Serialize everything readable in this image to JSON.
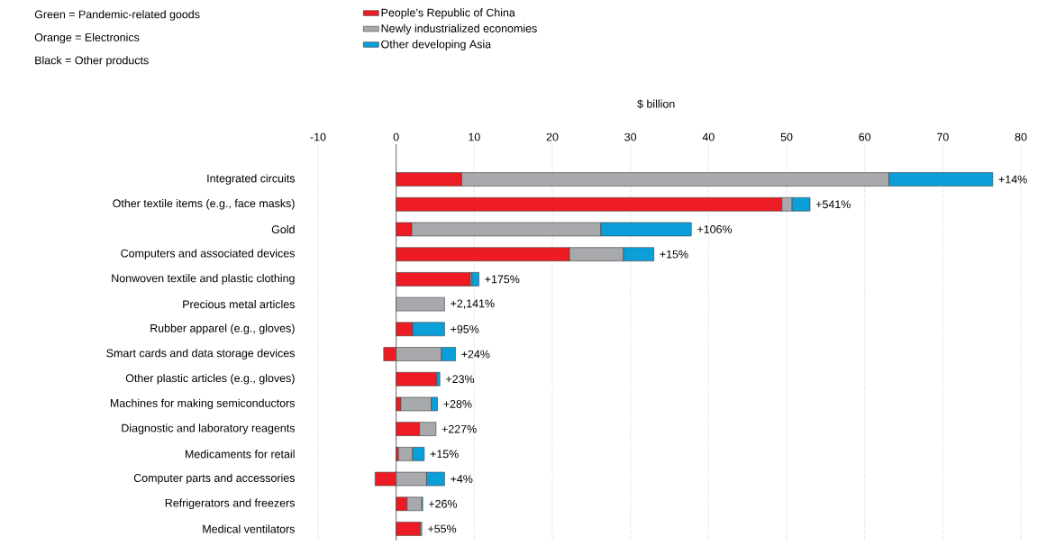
{
  "chart_data": {
    "type": "bar",
    "orientation": "horizontal",
    "stacked": true,
    "xlabel": "$ billion",
    "categories": [
      "Integrated circuits",
      "Other textile items (e.g., face masks)",
      "Gold",
      "Computers and associated devices",
      "Nonwoven textile and plastic clothing",
      "Precious metal articles",
      "Rubber apparel (e.g., gloves)",
      "Smart cards and data storage devices",
      "Other plastic articles (e.g., gloves)",
      "Machines for making semiconductors",
      "Diagnostic and laboratory reagents",
      "Medicaments for retail",
      "Computer parts and accessories",
      "Refrigerators and freezers",
      "Medical ventilators"
    ],
    "series": [
      {
        "name": "People’s Republic of China",
        "color": "#ed1c24",
        "values": [
          8.4,
          49.4,
          2.0,
          22.2,
          9.5,
          0,
          2.1,
          -1.6,
          5.2,
          0.6,
          3.0,
          0.3,
          -2.7,
          1.4,
          3.1
        ]
      },
      {
        "name": "Newly industrialized economies",
        "color": "#a7a9ac",
        "values": [
          54.7,
          1.3,
          24.2,
          6.9,
          0.2,
          6.2,
          0,
          5.8,
          0,
          3.9,
          2.1,
          1.8,
          3.9,
          1.9,
          0.2
        ]
      },
      {
        "name": "Other developing Asia",
        "color": "#0a9fd8",
        "values": [
          13.3,
          2.3,
          11.6,
          3.9,
          0.9,
          0,
          4.1,
          1.8,
          0.4,
          0.8,
          0,
          1.5,
          2.3,
          0.1,
          0
        ]
      }
    ],
    "xlim": [
      -10,
      80
    ],
    "xticks": [
      -10,
      0,
      10,
      20,
      30,
      40,
      50,
      60,
      70,
      80
    ],
    "grid": "x",
    "legend": "top",
    "annotations": [
      "Green = Pandemic-related goods",
      "Orange = Electronics",
      "Black = Other products",
      {
        "text": "+14%",
        "x": 76.4,
        "y": "Integrated circuits"
      },
      {
        "text": "+541%",
        "x": 53.0,
        "y": "Other textile items (e.g., face masks)"
      },
      {
        "text": "+106%",
        "x": 37.8,
        "y": "Gold"
      },
      {
        "text": "+15%",
        "x": 33.0,
        "y": "Computers and associated devices"
      },
      {
        "text": "+175%",
        "x": 10.6,
        "y": "Nonwoven textile and plastic clothing"
      },
      {
        "text": "+2,141%",
        "x": 6.2,
        "y": "Precious metal articles"
      },
      {
        "text": "+95%",
        "x": 6.2,
        "y": "Rubber apparel (e.g., gloves)"
      },
      {
        "text": "+24%",
        "x": 7.6,
        "y": "Smart cards and data storage devices"
      },
      {
        "text": "+23%",
        "x": 5.6,
        "y": "Other plastic articles (e.g., gloves)"
      },
      {
        "text": "+28%",
        "x": 5.3,
        "y": "Machines for making semiconductors"
      },
      {
        "text": "+227%",
        "x": 5.1,
        "y": "Diagnostic and laboratory reagents"
      },
      {
        "text": "+15%",
        "x": 3.6,
        "y": "Medicaments for retail"
      },
      {
        "text": "+4%",
        "x": 6.2,
        "y": "Computer parts and accessories"
      },
      {
        "text": "+26%",
        "x": 3.4,
        "y": "Refrigerators and freezers"
      },
      {
        "text": "+55%",
        "x": 3.3,
        "y": "Medical ventilators"
      }
    ]
  }
}
